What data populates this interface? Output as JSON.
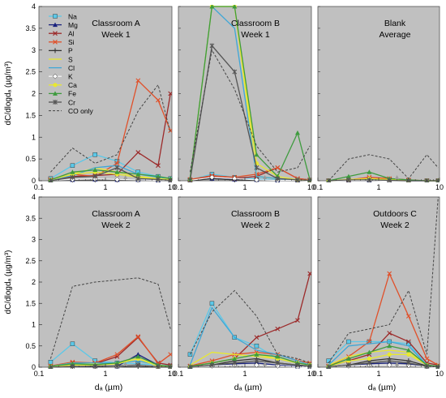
{
  "figure": {
    "ylabel": "dC/dlogdₐ (µg/m³)",
    "xlabel": "dₐ (µm)",
    "legend": [
      {
        "name": "Na",
        "color": "#5BC8E8",
        "marker": "square"
      },
      {
        "name": "Mg",
        "color": "#1A237E",
        "marker": "triangle"
      },
      {
        "name": "Al",
        "color": "#9C2A2A",
        "marker": "x"
      },
      {
        "name": "Si",
        "color": "#E0502A",
        "marker": "x"
      },
      {
        "name": "P",
        "color": "#333333",
        "marker": "plus"
      },
      {
        "name": "S",
        "color": "#E8E830",
        "marker": "none"
      },
      {
        "name": "Cl",
        "color": "#3FA7D6",
        "marker": "none"
      },
      {
        "name": "K",
        "color": "#FFFFFF",
        "marker": "diamond"
      },
      {
        "name": "Ca",
        "color": "#E8E830",
        "marker": "circle"
      },
      {
        "name": "Fe",
        "color": "#3E9B3E",
        "marker": "triangle"
      },
      {
        "name": "Cr",
        "color": "#555555",
        "marker": "star"
      },
      {
        "name": "CO only",
        "color": "#444444",
        "marker": "dash"
      }
    ]
  },
  "chart_data": [
    {
      "type": "line",
      "title": "Classroom A\nWeek 1",
      "xscale": "log",
      "xlim": [
        0.1,
        10
      ],
      "ylim": [
        0,
        4
      ],
      "yticks": [
        "0",
        "0.5",
        "1",
        "1.5",
        "2",
        "2.5",
        "3",
        "3.5",
        "4"
      ],
      "xticks": [
        "0.1",
        "1",
        "10"
      ],
      "x": [
        0.15,
        0.32,
        0.7,
        1.5,
        3.1,
        6.2,
        9.5
      ],
      "series": [
        {
          "name": "Na",
          "values": [
            0.05,
            0.35,
            0.6,
            0.45,
            0.2,
            0.1,
            0.05
          ]
        },
        {
          "name": "Mg",
          "values": [
            0.01,
            0.02,
            0.03,
            0.02,
            0.02,
            0.01,
            0.01
          ]
        },
        {
          "name": "Al",
          "values": [
            0.02,
            0.1,
            0.12,
            0.15,
            0.65,
            0.35,
            2.0
          ]
        },
        {
          "name": "Si",
          "values": [
            0.03,
            0.15,
            0.1,
            0.4,
            2.3,
            1.85,
            1.15
          ]
        },
        {
          "name": "P",
          "values": [
            0.0,
            0.02,
            0.02,
            0.02,
            0.02,
            0.01,
            0.0
          ]
        },
        {
          "name": "S",
          "values": [
            0.02,
            0.15,
            0.3,
            0.2,
            0.1,
            0.05,
            0.03
          ]
        },
        {
          "name": "Cl",
          "values": [
            0.02,
            0.12,
            0.3,
            0.35,
            0.15,
            0.08,
            0.05
          ]
        },
        {
          "name": "K",
          "values": [
            0.01,
            0.03,
            0.04,
            0.03,
            0.02,
            0.01,
            0.01
          ]
        },
        {
          "name": "Ca",
          "values": [
            0.02,
            0.15,
            0.2,
            0.15,
            0.08,
            0.05,
            0.03
          ]
        },
        {
          "name": "Fe",
          "values": [
            0.02,
            0.2,
            0.25,
            0.2,
            0.15,
            0.1,
            0.05
          ]
        },
        {
          "name": "Cr",
          "values": [
            0.0,
            0.08,
            0.1,
            0.3,
            0.05,
            0.03,
            0.01
          ]
        },
        {
          "name": "CO only",
          "values": [
            0.2,
            0.75,
            0.4,
            0.6,
            1.6,
            2.2,
            1.1
          ]
        }
      ]
    },
    {
      "type": "line",
      "title": "Classroom B\nWeek 1",
      "xscale": "log",
      "xlim": [
        0.1,
        10
      ],
      "ylim": [
        0,
        4
      ],
      "x": [
        0.15,
        0.32,
        0.7,
        1.5,
        3.1,
        6.2,
        9.5
      ],
      "series": [
        {
          "name": "Na",
          "values": [
            0.02,
            0.15,
            0.08,
            0.04,
            0.02,
            0.01,
            0.01
          ]
        },
        {
          "name": "Mg",
          "values": [
            0.01,
            0.05,
            0.03,
            0.02,
            0.01,
            0.01,
            0.0
          ]
        },
        {
          "name": "Al",
          "values": [
            0.02,
            0.1,
            0.05,
            0.1,
            0.3,
            0.05,
            0.02
          ]
        },
        {
          "name": "Si",
          "values": [
            0.03,
            0.12,
            0.08,
            0.15,
            0.3,
            0.05,
            0.02
          ]
        },
        {
          "name": "P",
          "values": [
            0.0,
            0.05,
            0.02,
            0.01,
            0.01,
            0.0,
            0.0
          ]
        },
        {
          "name": "S",
          "values": [
            0.05,
            4.0,
            4.0,
            0.1,
            0.05,
            0.02,
            0.01
          ]
        },
        {
          "name": "Cl",
          "values": [
            0.02,
            4.0,
            3.5,
            0.1,
            0.05,
            0.02,
            0.01
          ]
        },
        {
          "name": "K",
          "values": [
            0.01,
            0.08,
            0.05,
            0.02,
            0.01,
            0.01,
            0.0
          ]
        },
        {
          "name": "Ca",
          "values": [
            0.02,
            4.0,
            4.0,
            0.4,
            0.1,
            0.02,
            0.01
          ]
        },
        {
          "name": "Fe",
          "values": [
            0.05,
            4.0,
            4.0,
            0.6,
            0.1,
            1.1,
            0.02
          ]
        },
        {
          "name": "Cr",
          "values": [
            0.01,
            3.1,
            2.5,
            0.3,
            0.05,
            0.02,
            0.01
          ]
        },
        {
          "name": "CO only",
          "values": [
            0.2,
            3.0,
            2.1,
            0.8,
            0.2,
            0.3,
            0.8
          ]
        }
      ]
    },
    {
      "type": "line",
      "title": "Blank\nAverage",
      "xscale": "log",
      "xlim": [
        0.1,
        10
      ],
      "ylim": [
        0,
        4
      ],
      "x": [
        0.15,
        0.32,
        0.7,
        1.5,
        3.1,
        6.2,
        9.5
      ],
      "series": [
        {
          "name": "Na",
          "values": [
            0.0,
            0.02,
            0.03,
            0.02,
            0.01,
            0.0,
            0.0
          ]
        },
        {
          "name": "Mg",
          "values": [
            0.0,
            0.01,
            0.01,
            0.01,
            0.0,
            0.0,
            0.0
          ]
        },
        {
          "name": "Al",
          "values": [
            0.0,
            0.02,
            0.05,
            0.03,
            0.01,
            0.0,
            0.0
          ]
        },
        {
          "name": "Si",
          "values": [
            0.0,
            0.02,
            0.08,
            0.05,
            0.02,
            0.0,
            0.0
          ]
        },
        {
          "name": "P",
          "values": [
            0.0,
            0.01,
            0.01,
            0.0,
            0.0,
            0.0,
            0.0
          ]
        },
        {
          "name": "S",
          "values": [
            0.0,
            0.02,
            0.04,
            0.02,
            0.01,
            0.0,
            0.0
          ]
        },
        {
          "name": "Cl",
          "values": [
            0.0,
            0.02,
            0.04,
            0.02,
            0.01,
            0.0,
            0.0
          ]
        },
        {
          "name": "K",
          "values": [
            0.0,
            0.01,
            0.01,
            0.0,
            0.0,
            0.0,
            0.0
          ]
        },
        {
          "name": "Ca",
          "values": [
            0.0,
            0.03,
            0.05,
            0.03,
            0.01,
            0.0,
            0.0
          ]
        },
        {
          "name": "Fe",
          "values": [
            0.0,
            0.1,
            0.2,
            0.05,
            0.02,
            0.0,
            0.0
          ]
        },
        {
          "name": "Cr",
          "values": [
            0.0,
            0.02,
            0.02,
            0.01,
            0.0,
            0.0,
            0.0
          ]
        },
        {
          "name": "CO only",
          "values": [
            0.0,
            0.5,
            0.6,
            0.5,
            0.05,
            0.6,
            0.3
          ]
        }
      ]
    },
    {
      "type": "line",
      "title": "Classroom A\nWeek 2",
      "xscale": "log",
      "xlim": [
        0.1,
        10
      ],
      "ylim": [
        0,
        4
      ],
      "x": [
        0.15,
        0.32,
        0.7,
        1.5,
        3.1,
        6.2,
        9.5
      ],
      "series": [
        {
          "name": "Na",
          "values": [
            0.12,
            0.55,
            0.15,
            0.1,
            0.08,
            0.05,
            0.03
          ]
        },
        {
          "name": "Mg",
          "values": [
            0.01,
            0.05,
            0.03,
            0.02,
            0.3,
            0.05,
            0.01
          ]
        },
        {
          "name": "Al",
          "values": [
            0.02,
            0.1,
            0.08,
            0.25,
            0.7,
            0.1,
            0.05
          ]
        },
        {
          "name": "Si",
          "values": [
            0.03,
            0.12,
            0.1,
            0.3,
            0.72,
            0.08,
            0.3
          ]
        },
        {
          "name": "P",
          "values": [
            0.0,
            0.02,
            0.01,
            0.01,
            0.01,
            0.0,
            0.0
          ]
        },
        {
          "name": "S",
          "values": [
            0.02,
            0.1,
            0.08,
            0.1,
            0.2,
            0.05,
            0.02
          ]
        },
        {
          "name": "Cl",
          "values": [
            0.02,
            0.1,
            0.1,
            0.1,
            0.15,
            0.05,
            0.02
          ]
        },
        {
          "name": "K",
          "values": [
            0.01,
            0.03,
            0.02,
            0.02,
            0.05,
            0.01,
            0.0
          ]
        },
        {
          "name": "Ca",
          "values": [
            0.02,
            0.05,
            0.05,
            0.08,
            0.2,
            0.02,
            0.01
          ]
        },
        {
          "name": "Fe",
          "values": [
            0.02,
            0.08,
            0.06,
            0.1,
            0.25,
            0.05,
            0.02
          ]
        },
        {
          "name": "Cr",
          "values": [
            0.0,
            0.02,
            0.02,
            0.03,
            0.05,
            0.01,
            0.0
          ]
        },
        {
          "name": "CO only",
          "values": [
            0.2,
            1.9,
            2.0,
            2.05,
            2.1,
            1.95,
            0.9
          ]
        }
      ]
    },
    {
      "type": "line",
      "title": "Classroom B\nWeek 2",
      "xscale": "log",
      "xlim": [
        0.1,
        10
      ],
      "ylim": [
        0,
        4
      ],
      "x": [
        0.15,
        0.32,
        0.7,
        1.5,
        3.1,
        6.2,
        9.5
      ],
      "series": [
        {
          "name": "Na",
          "values": [
            0.3,
            1.5,
            0.7,
            0.5,
            0.2,
            0.1,
            0.05
          ]
        },
        {
          "name": "Mg",
          "values": [
            0.01,
            0.05,
            0.08,
            0.1,
            0.05,
            0.02,
            0.01
          ]
        },
        {
          "name": "Al",
          "values": [
            0.02,
            0.1,
            0.2,
            0.7,
            0.9,
            1.1,
            2.2
          ]
        },
        {
          "name": "Si",
          "values": [
            0.03,
            0.15,
            0.3,
            0.35,
            0.3,
            0.15,
            0.1
          ]
        },
        {
          "name": "P",
          "values": [
            0.0,
            0.05,
            0.15,
            0.2,
            0.1,
            0.05,
            0.02
          ]
        },
        {
          "name": "S",
          "values": [
            0.05,
            0.35,
            0.3,
            0.25,
            0.2,
            0.1,
            0.05
          ]
        },
        {
          "name": "Cl",
          "values": [
            0.05,
            1.4,
            0.7,
            0.4,
            0.3,
            0.15,
            0.05
          ]
        },
        {
          "name": "K",
          "values": [
            0.01,
            0.03,
            0.05,
            0.05,
            0.03,
            0.01,
            0.0
          ]
        },
        {
          "name": "Ca",
          "values": [
            0.02,
            0.1,
            0.2,
            0.3,
            0.2,
            0.1,
            0.05
          ]
        },
        {
          "name": "Fe",
          "values": [
            0.02,
            0.1,
            0.2,
            0.3,
            0.25,
            0.1,
            0.05
          ]
        },
        {
          "name": "Cr",
          "values": [
            0.01,
            0.05,
            0.1,
            0.15,
            0.1,
            0.05,
            0.02
          ]
        },
        {
          "name": "CO only",
          "values": [
            0.3,
            1.3,
            1.8,
            1.2,
            0.3,
            0.2,
            0.1
          ]
        }
      ]
    },
    {
      "type": "line",
      "title": "Outdoors C\nWeek 2",
      "xscale": "log",
      "xlim": [
        0.1,
        10
      ],
      "ylim": [
        0,
        4
      ],
      "x": [
        0.15,
        0.32,
        0.7,
        1.5,
        3.1,
        6.2,
        9.5
      ],
      "series": [
        {
          "name": "Na",
          "values": [
            0.15,
            0.6,
            0.6,
            0.6,
            0.55,
            0.05,
            0.02
          ]
        },
        {
          "name": "Mg",
          "values": [
            0.01,
            0.05,
            0.08,
            0.1,
            0.08,
            0.02,
            0.01
          ]
        },
        {
          "name": "Al",
          "values": [
            0.02,
            0.15,
            0.3,
            0.8,
            0.6,
            0.1,
            0.05
          ]
        },
        {
          "name": "Si",
          "values": [
            0.03,
            0.25,
            0.6,
            2.2,
            1.2,
            0.2,
            0.05
          ]
        },
        {
          "name": "P",
          "values": [
            0.0,
            0.05,
            0.15,
            0.2,
            0.15,
            0.03,
            0.01
          ]
        },
        {
          "name": "S",
          "values": [
            0.05,
            0.25,
            0.35,
            0.4,
            0.35,
            0.05,
            0.02
          ]
        },
        {
          "name": "Cl",
          "values": [
            0.05,
            0.5,
            0.55,
            0.6,
            0.5,
            0.05,
            0.02
          ]
        },
        {
          "name": "K",
          "values": [
            0.01,
            0.03,
            0.05,
            0.05,
            0.04,
            0.01,
            0.0
          ]
        },
        {
          "name": "Ca",
          "values": [
            0.02,
            0.15,
            0.2,
            0.3,
            0.3,
            0.05,
            0.02
          ]
        },
        {
          "name": "Fe",
          "values": [
            0.02,
            0.2,
            0.35,
            0.5,
            0.4,
            0.05,
            0.02
          ]
        },
        {
          "name": "Cr",
          "values": [
            0.01,
            0.05,
            0.1,
            0.15,
            0.1,
            0.02,
            0.01
          ]
        },
        {
          "name": "CO only",
          "values": [
            0.1,
            0.8,
            0.9,
            1.0,
            1.8,
            0.3,
            4.0
          ]
        }
      ]
    }
  ]
}
